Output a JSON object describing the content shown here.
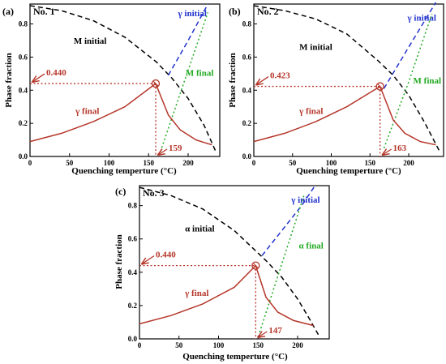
{
  "chart_data": [
    {
      "type": "line",
      "panel": "(a)",
      "label": "No. 1",
      "xlabel": "Quenching temperture (°C)",
      "ylabel": "Phase fraction",
      "xlim": [
        0,
        240
      ],
      "ylim": [
        0,
        0.92
      ],
      "xticks": [
        0,
        50,
        100,
        150,
        200
      ],
      "yticks": [
        0.0,
        0.2,
        0.4,
        0.6,
        0.8
      ],
      "grid": false,
      "series": [
        {
          "name": "M initial",
          "style": "dashed",
          "color": "#000000",
          "x": [
            0,
            40,
            80,
            120,
            160,
            180,
            200,
            220,
            235
          ],
          "y": [
            0.91,
            0.88,
            0.82,
            0.72,
            0.57,
            0.47,
            0.35,
            0.19,
            0.03
          ]
        },
        {
          "name": "γ initial",
          "style": "dashed",
          "color": "#2233cc",
          "x": [
            175,
            200,
            225
          ],
          "y": [
            0.49,
            0.7,
            0.92
          ]
        },
        {
          "name": "M final",
          "style": "dotted",
          "color": "#22aa22",
          "x": [
            165,
            195,
            225
          ],
          "y": [
            0.03,
            0.45,
            0.87
          ]
        },
        {
          "name": "γ final",
          "style": "solid",
          "color": "#b5362a",
          "x": [
            0,
            40,
            80,
            120,
            159,
            175,
            190,
            210,
            230
          ],
          "y": [
            0.09,
            0.14,
            0.21,
            0.3,
            0.44,
            0.25,
            0.16,
            0.1,
            0.07
          ]
        }
      ],
      "annotations": [
        {
          "text": "0.440",
          "x": 159,
          "y": 0.44,
          "axis": "y"
        },
        {
          "text": "159",
          "x": 159,
          "y": 0.44,
          "axis": "x"
        }
      ]
    },
    {
      "type": "line",
      "panel": "(b)",
      "label": "No. 2",
      "xlabel": "Quenching temperture (°C)",
      "ylabel": "Phase fraction",
      "xlim": [
        0,
        245
      ],
      "ylim": [
        0,
        0.92
      ],
      "xticks": [
        0,
        50,
        100,
        150,
        200
      ],
      "yticks": [
        0.0,
        0.2,
        0.4,
        0.6,
        0.8
      ],
      "grid": false,
      "series": [
        {
          "name": "M initial",
          "style": "dashed",
          "color": "#000000",
          "x": [
            0,
            40,
            80,
            120,
            160,
            180,
            200,
            220,
            240
          ],
          "y": [
            0.91,
            0.88,
            0.83,
            0.74,
            0.58,
            0.49,
            0.37,
            0.21,
            0.03
          ]
        },
        {
          "name": "γ initial",
          "style": "dashed",
          "color": "#2233cc",
          "x": [
            168,
            200,
            235
          ],
          "y": [
            0.41,
            0.66,
            0.93
          ]
        },
        {
          "name": "M final",
          "style": "dotted",
          "color": "#22aa22",
          "x": [
            168,
            200,
            230
          ],
          "y": [
            0.05,
            0.45,
            0.86
          ]
        },
        {
          "name": "γ final",
          "style": "solid",
          "color": "#b5362a",
          "x": [
            0,
            40,
            80,
            120,
            163,
            180,
            195,
            215,
            235
          ],
          "y": [
            0.09,
            0.14,
            0.21,
            0.3,
            0.423,
            0.22,
            0.14,
            0.09,
            0.07
          ]
        }
      ],
      "annotations": [
        {
          "text": "0.423",
          "x": 163,
          "y": 0.423,
          "axis": "y"
        },
        {
          "text": "163",
          "x": 163,
          "y": 0.423,
          "axis": "x"
        }
      ]
    },
    {
      "type": "line",
      "panel": "(c)",
      "label": "No. 3",
      "xlabel": "Quenching temperture (°C)",
      "ylabel": "Phase fraction",
      "xlim": [
        0,
        240
      ],
      "ylim": [
        0,
        0.92
      ],
      "xticks": [
        0,
        50,
        100,
        150,
        200
      ],
      "yticks": [
        0.0,
        0.2,
        0.4,
        0.6,
        0.8
      ],
      "grid": false,
      "series": [
        {
          "name": "α initial",
          "style": "dashed",
          "color": "#000000",
          "x": [
            0,
            40,
            80,
            120,
            160,
            180,
            200,
            215,
            228
          ],
          "y": [
            0.91,
            0.86,
            0.78,
            0.65,
            0.47,
            0.37,
            0.24,
            0.12,
            0.01
          ]
        },
        {
          "name": "γ initial",
          "style": "dashed",
          "color": "#2233cc",
          "x": [
            155,
            180,
            205,
            222
          ],
          "y": [
            0.5,
            0.65,
            0.8,
            0.92
          ]
        },
        {
          "name": "α final",
          "style": "dotted",
          "color": "#22aa22",
          "x": [
            152,
            180,
            208
          ],
          "y": [
            0.04,
            0.45,
            0.86
          ]
        },
        {
          "name": "γ final",
          "style": "solid",
          "color": "#b5362a",
          "x": [
            0,
            40,
            80,
            120,
            147,
            160,
            175,
            195,
            220
          ],
          "y": [
            0.09,
            0.14,
            0.21,
            0.31,
            0.44,
            0.25,
            0.16,
            0.11,
            0.08
          ]
        }
      ],
      "annotations": [
        {
          "text": "0.440",
          "x": 147,
          "y": 0.44,
          "axis": "y"
        },
        {
          "text": "147",
          "x": 147,
          "y": 0.44,
          "axis": "x"
        }
      ]
    }
  ]
}
